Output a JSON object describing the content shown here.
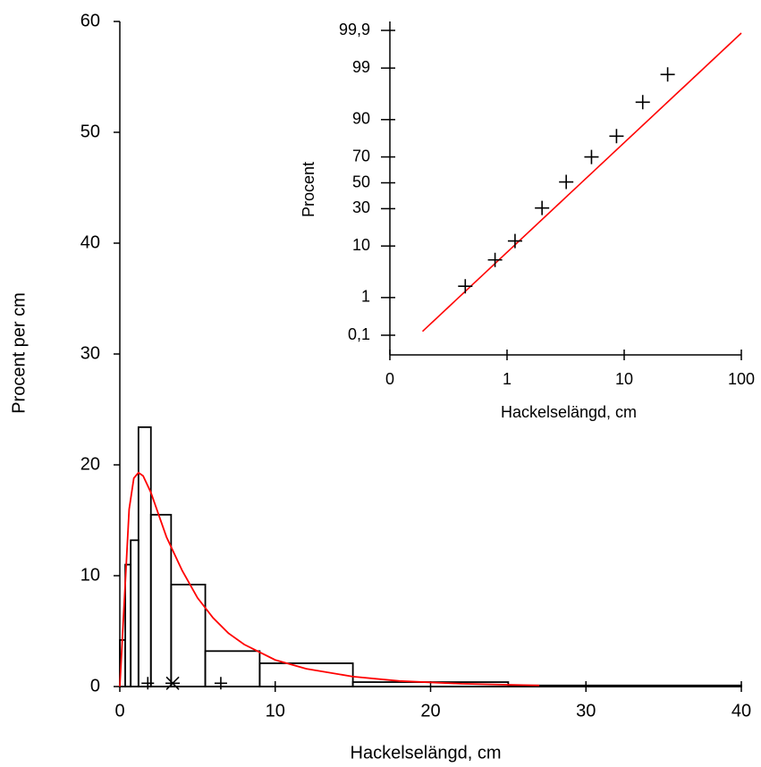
{
  "chart_data": [
    {
      "type": "histogram",
      "bins": [
        0,
        0.35,
        0.7,
        1.2,
        2,
        3.3,
        5.5,
        9,
        15,
        25,
        40
      ],
      "values": [
        4.2,
        11,
        13.2,
        23.4,
        15.5,
        9.2,
        3.2,
        2.1,
        0.4,
        0.1
      ],
      "color": "#000000",
      "line": {
        "x": [
          0,
          0.3,
          0.6,
          0.9,
          1.2,
          1.5,
          2,
          2.5,
          3,
          4,
          5,
          6,
          7,
          8,
          10,
          12,
          15,
          18,
          22,
          27
        ],
        "values": [
          0,
          8,
          16,
          18.8,
          19.3,
          19,
          17.5,
          15.5,
          13.5,
          10.5,
          8,
          6.2,
          4.8,
          3.8,
          2.4,
          1.6,
          0.9,
          0.5,
          0.25,
          0.1
        ],
        "color": "#ff0000"
      },
      "markers": {
        "x": [
          1.8,
          3.4,
          6.5
        ],
        "values": [
          0.3,
          0.3,
          0.3
        ],
        "symbols": [
          "+",
          "*",
          "+"
        ],
        "color": "#000000"
      },
      "xlim": [
        0,
        40
      ],
      "xticks": [
        0,
        10,
        20,
        30,
        40
      ],
      "ylim": [
        0,
        60
      ],
      "yticks": [
        0,
        10,
        20,
        30,
        40,
        50,
        60
      ],
      "xlabel": "Hackelselängd,  cm",
      "ylabel": "Procent per cm"
    },
    {
      "type": "probability",
      "x": [
        0.44,
        0.79,
        1.17,
        1.99,
        3.2,
        5.26,
        8.6,
        14.4,
        23.5
      ],
      "values": [
        1.8,
        5.9,
        11.9,
        30.5,
        50.7,
        70,
        82.8,
        94.9,
        98.6
      ],
      "marker": "+",
      "color": "#000000",
      "line": {
        "x": [
          0.19,
          100
        ],
        "values": [
          0.13,
          99.88
        ],
        "color": "#ff0000"
      },
      "xscale": "log",
      "yscale": "probit",
      "xlim": [
        0.1,
        100
      ],
      "xticks": [
        {
          "value": 0.1,
          "label": "0"
        },
        1,
        10,
        100
      ],
      "ylim": [
        0.1,
        99.9
      ],
      "yticks": [
        {
          "value": 0.1,
          "label": "0,1"
        },
        1,
        10,
        30,
        50,
        70,
        90,
        99,
        {
          "value": 99.9,
          "label": "99,9"
        }
      ],
      "xlabel": "Hackelselängd, cm",
      "ylabel": "Procent"
    }
  ]
}
